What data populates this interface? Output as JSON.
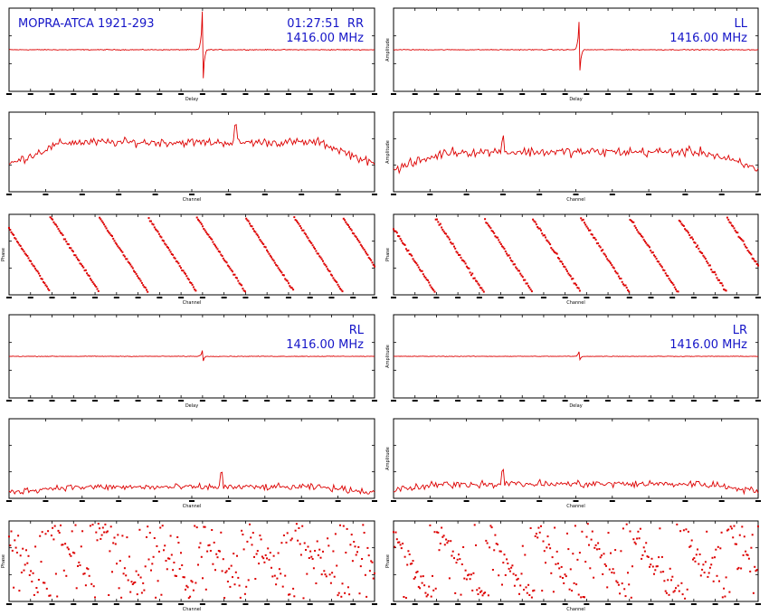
{
  "header": {
    "source": "MOPRA-ATCA 1921-293",
    "time": "01:27:51"
  },
  "colors": {
    "trace": "#dd0000",
    "annotation": "#1515c8",
    "axes": "#000000"
  },
  "axis_labels": {
    "delay": "Delay",
    "channel": "Channel",
    "amplitude": "Amplitude",
    "phase": "Phase"
  },
  "chart_data": [
    {
      "id": "RR",
      "polarization": "RR",
      "frequency": "1416.00 MHz",
      "delay": {
        "type": "line",
        "xlabel": "Delay",
        "ylabel": "",
        "xlim": [
          -256,
          256
        ],
        "peak_channel": 0.53,
        "peak_height": 0.95,
        "noise": 0.015
      },
      "amp": {
        "type": "line",
        "xlabel": "Channel",
        "ylabel": "",
        "xlim": [
          0,
          1024
        ],
        "level": 0.62,
        "noise": 0.08,
        "spike_channel": 0.62
      },
      "phase": {
        "type": "scatter",
        "xlabel": "Channel",
        "ylabel": "Phase",
        "xlim": [
          0,
          1024
        ],
        "wraps": 7.5,
        "scatter": 0.02
      }
    },
    {
      "id": "LL",
      "polarization": "LL",
      "frequency": "1416.00 MHz",
      "delay": {
        "type": "line",
        "xlabel": "Delay",
        "ylabel": "Amplitude",
        "xlim": [
          -256,
          256
        ],
        "peak_channel": 0.51,
        "peak_height": 0.7,
        "noise": 0.015
      },
      "amp": {
        "type": "line",
        "xlabel": "Channel",
        "ylabel": "Amplitude",
        "xlim": [
          0,
          1024
        ],
        "level": 0.5,
        "noise": 0.09,
        "spike_channel": 0.3
      },
      "phase": {
        "type": "scatter",
        "xlabel": "Channel",
        "ylabel": "Phase",
        "xlim": [
          0,
          1024
        ],
        "wraps": 7.5,
        "scatter": 0.03
      }
    },
    {
      "id": "RL",
      "polarization": "RL",
      "frequency": "1416.00 MHz",
      "delay": {
        "type": "line",
        "xlabel": "Delay",
        "ylabel": "",
        "xlim": [
          -256,
          256
        ],
        "peak_channel": 0.53,
        "peak_height": 0.15,
        "noise": 0.012
      },
      "amp": {
        "type": "line",
        "xlabel": "Channel",
        "ylabel": "",
        "xlim": [
          0,
          1024
        ],
        "level": 0.14,
        "noise": 0.06,
        "spike_channel": 0.58
      },
      "phase": {
        "type": "scatter",
        "xlabel": "Channel",
        "ylabel": "Phase",
        "xlim": [
          0,
          1024
        ],
        "wraps": 7.5,
        "scatter": 0.35
      }
    },
    {
      "id": "LR",
      "polarization": "LR",
      "frequency": "1416.00 MHz",
      "delay": {
        "type": "line",
        "xlabel": "Delay",
        "ylabel": "Amplitude",
        "xlim": [
          -256,
          256
        ],
        "peak_channel": 0.51,
        "peak_height": 0.12,
        "noise": 0.012
      },
      "amp": {
        "type": "line",
        "xlabel": "Channel",
        "ylabel": "Amplitude",
        "xlim": [
          0,
          1024
        ],
        "level": 0.18,
        "noise": 0.07,
        "spike_channel": 0.3
      },
      "phase": {
        "type": "scatter",
        "xlabel": "Channel",
        "ylabel": "Phase",
        "xlim": [
          0,
          1024
        ],
        "wraps": 7.5,
        "scatter": 0.25
      }
    }
  ]
}
